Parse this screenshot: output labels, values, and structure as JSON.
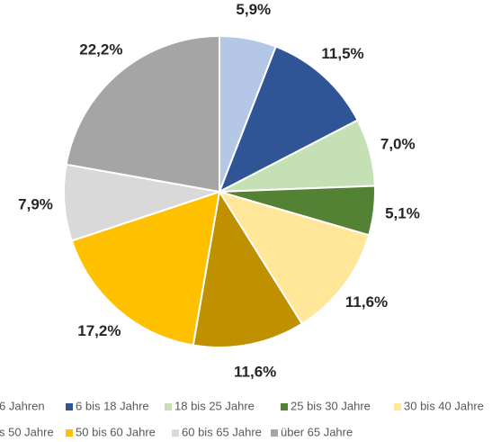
{
  "chart_data": {
    "type": "pie",
    "categories": [
      "6 Jahren",
      "6 bis 18 Jahre",
      "18 bis 25 Jahre",
      "25 bis 30 Jahre",
      "30 bis 40 Jahre",
      "s 50 Jahre",
      "50 bis 60 Jahre",
      "60 bis 65 Jahre",
      "über 65 Jahre"
    ],
    "values": [
      5.9,
      11.5,
      7.0,
      5.1,
      11.6,
      11.6,
      17.2,
      7.9,
      22.2
    ],
    "value_labels": [
      "5,9%",
      "11,5%",
      "7,0%",
      "5,1%",
      "11,6%",
      "11,6%",
      "17,2%",
      "7,9%",
      "22,2%"
    ],
    "colors": [
      "#b4c7e7",
      "#2f5597",
      "#c5e0b4",
      "#548235",
      "#ffe699",
      "#bf9000",
      "#ffc000",
      "#d9d9d9",
      "#a5a5a5"
    ],
    "legend": "bottom"
  }
}
